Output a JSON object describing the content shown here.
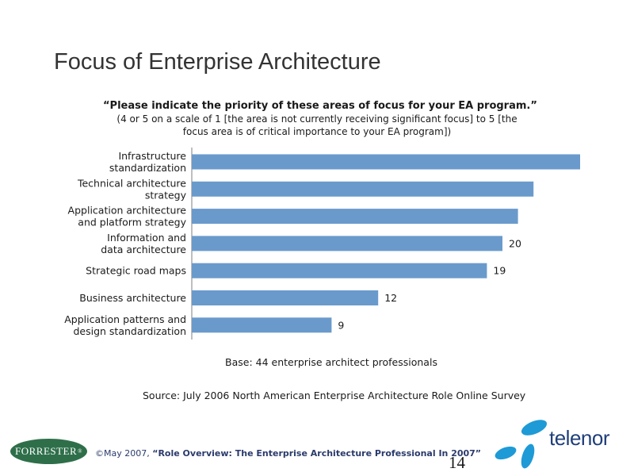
{
  "slide": {
    "title": "Focus of Enterprise Architecture",
    "page_number": "14"
  },
  "question": {
    "main": "“Please indicate the priority of these areas of focus for your EA program.”",
    "sub": "(4 or 5 on a scale of 1 [the area is not currently receiving significant focus] to 5 [the focus area is of critical importance to your EA program])"
  },
  "notes": {
    "base": "Base: 44 enterprise architect professionals",
    "source": "Source: July 2006 North American Enterprise Architecture Role Online Survey"
  },
  "footer": {
    "copyright": "©May 2007,",
    "report_title": "“Role Overview: The Enterprise Architecture Professional In 2007”"
  },
  "logos": {
    "forrester": "FORRESTER",
    "forrester_mark": "®",
    "telenor": "telenor"
  },
  "colors": {
    "bar": "#6a9acc",
    "axis": "#7f7f7f",
    "forrester_green": "#2e6f4a",
    "telenor_blue": "#1e9ad6",
    "telenor_text": "#1f3f7a"
  },
  "chart_data": {
    "type": "bar",
    "orientation": "horizontal",
    "categories": [
      [
        "Infrastructure",
        "standardization"
      ],
      [
        "Technical architecture",
        "strategy"
      ],
      [
        "Application architecture",
        "and platform strategy"
      ],
      [
        "Information and",
        "data architecture"
      ],
      [
        "Strategic road maps"
      ],
      [
        "Business architecture"
      ],
      [
        "Application patterns and",
        "design standardization"
      ]
    ],
    "values": [
      25,
      22,
      21,
      20,
      19,
      12,
      9
    ],
    "data_labels": [
      "",
      "",
      "",
      "20",
      "19",
      "12",
      "9"
    ],
    "xlim": [
      0,
      25
    ],
    "grid": false,
    "legend": "none"
  }
}
